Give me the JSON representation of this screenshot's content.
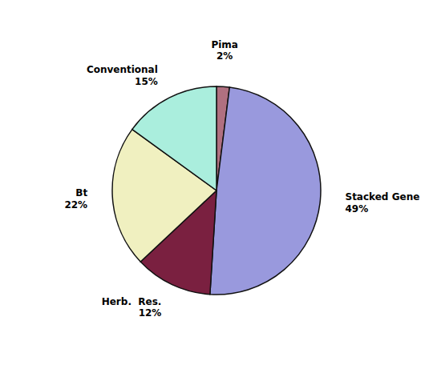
{
  "chart_data": {
    "type": "pie",
    "categories": [
      "Pima",
      "Stacked Gene",
      "Herb.  Res.",
      "Bt",
      "Conventional"
    ],
    "values": [
      2,
      49,
      12,
      22,
      15
    ],
    "value_labels": [
      "2%",
      "49%",
      "12%",
      "22%",
      "15%"
    ],
    "colors": [
      "#b07080",
      "#9999dd",
      "#7a2040",
      "#f0f0c0",
      "#aaeedd"
    ],
    "data_labels": true
  }
}
